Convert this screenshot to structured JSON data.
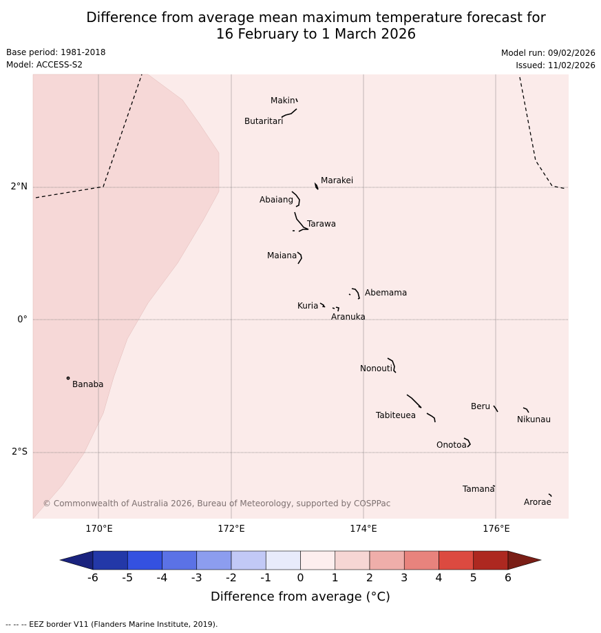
{
  "title": {
    "line1": "Difference from average mean maximum temperature forecast for",
    "line2": "16 February to 1 March 2026"
  },
  "meta": {
    "base_period": "Base period: 1981-2018",
    "model": "Model: ACCESS-S2",
    "model_run": "Model run: 09/02/2026",
    "issued": "Issued: 11/02/2026"
  },
  "map": {
    "credit": "© Commonwealth of Australia 2026, Bureau of Meteorology, supported by COSPPac",
    "lon_ticks": [
      "170°E",
      "172°E",
      "174°E",
      "176°E"
    ],
    "lat_ticks": [
      "2°N",
      "0°",
      "2°S"
    ],
    "fill_classes": {
      "warm_0_1": "#fbebea",
      "warm_1_2": "#f6d8d7"
    },
    "places": {
      "makin": "Makin",
      "butaritari": "Butaritari",
      "marakei": "Marakei",
      "abaiang": "Abaiang",
      "tarawa": "Tarawa",
      "maiana": "Maiana",
      "abemama": "Abemama",
      "kuria": "Kuria",
      "aranuka": "Aranuka",
      "banaba": "Banaba",
      "nonouti": "Nonouti",
      "beru": "Beru",
      "tabiteuea": "Tabiteuea",
      "nikunau": "Nikunau",
      "onotoa": "Onotoa",
      "tamana": "Tamana",
      "arorae": "Arorae"
    }
  },
  "colorbar": {
    "labels": [
      "-6",
      "-5",
      "-4",
      "-3",
      "-2",
      "-1",
      "0",
      "1",
      "2",
      "3",
      "4",
      "5",
      "6"
    ],
    "colors": [
      "#2338a8",
      "#3451e0",
      "#5b72e6",
      "#8c9def",
      "#c2c9f6",
      "#e8ebfb",
      "#fdeeee",
      "#f6d6d4",
      "#efaeaa",
      "#e8837d",
      "#dc4a40",
      "#ad2820"
    ],
    "low_extend_color": "#1a237e",
    "high_extend_color": "#7a1e16",
    "title": "Difference from average (°C)"
  },
  "footer": {
    "eez_note": "--  --  -- EEZ border V11 (Flanders Marine Institute, 2019)."
  }
}
